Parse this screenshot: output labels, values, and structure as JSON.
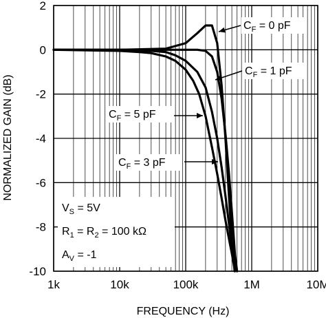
{
  "chart_data": {
    "type": "line",
    "title": "",
    "xlabel": "FREQUENCY (Hz)",
    "ylabel": "NORMALIZED GAIN (dB)",
    "xscale": "log",
    "xlim": [
      1000,
      10000000
    ],
    "ylim": [
      -10,
      2
    ],
    "x_ticks": [
      1000,
      10000,
      100000,
      1000000,
      10000000
    ],
    "x_tick_labels": [
      "1k",
      "10k",
      "100k",
      "1M",
      "10M"
    ],
    "y_ticks": [
      2,
      0,
      -2,
      -4,
      -6,
      -8,
      -10
    ],
    "y_tick_labels": [
      "2",
      "0",
      "-2",
      "-4",
      "-6",
      "-8",
      "-10"
    ],
    "grid": true,
    "series": [
      {
        "name": "CF = 0 pF",
        "label_main": "C",
        "label_sub": "F",
        "label_rest": " = 0 pF",
        "x": [
          1000,
          10000,
          50000,
          100000,
          150000,
          200000,
          250000,
          300000,
          350000,
          400000,
          450000,
          500000,
          550000
        ],
        "y": [
          0,
          0,
          0.05,
          0.3,
          0.75,
          1.1,
          1.1,
          0.3,
          -1.6,
          -4.0,
          -6.5,
          -8.6,
          -10
        ]
      },
      {
        "name": "CF = 1 pF",
        "label_main": "C",
        "label_sub": "F",
        "label_rest": " = 1 pF",
        "x": [
          1000,
          10000,
          50000,
          100000,
          150000,
          200000,
          250000,
          300000,
          350000,
          400000,
          450000,
          500000,
          560000,
          600000
        ],
        "y": [
          0,
          0,
          0,
          0,
          0,
          -0.05,
          -0.3,
          -1.0,
          -2.2,
          -3.8,
          -5.5,
          -7.3,
          -9.3,
          -10
        ]
      },
      {
        "name": "CF = 3 pF",
        "label_main": "C",
        "label_sub": "F",
        "label_rest": " = 3 pF",
        "x": [
          1000,
          10000,
          30000,
          50000,
          70000,
          100000,
          150000,
          200000,
          250000,
          300000,
          350000,
          400000,
          450000,
          500000,
          550000,
          600000
        ],
        "y": [
          0,
          0,
          -0.05,
          -0.1,
          -0.25,
          -0.5,
          -1.0,
          -1.7,
          -2.8,
          -4.0,
          -5.3,
          -6.6,
          -7.8,
          -8.9,
          -9.6,
          -10
        ]
      },
      {
        "name": "CF = 5 pF",
        "label_main": "C",
        "label_sub": "F",
        "label_rest": " = 5 pF",
        "x": [
          1000,
          10000,
          20000,
          30000,
          50000,
          70000,
          100000,
          130000,
          160000,
          200000,
          250000,
          300000,
          350000,
          400000,
          450000,
          500000,
          560000
        ],
        "y": [
          0,
          -0.05,
          -0.1,
          -0.15,
          -0.3,
          -0.5,
          -0.9,
          -1.4,
          -2.0,
          -3.0,
          -4.4,
          -5.6,
          -6.7,
          -7.7,
          -8.5,
          -9.2,
          -10
        ]
      }
    ],
    "annotations": [
      {
        "main": "V",
        "sub": "S",
        "rest": " = 5V"
      },
      {
        "main": "R",
        "sub": "1",
        "mid": " = R",
        "sub2": "2",
        "rest": " = 100 kΩ"
      },
      {
        "main": "A",
        "sub": "V",
        "rest": " = -1"
      }
    ]
  }
}
